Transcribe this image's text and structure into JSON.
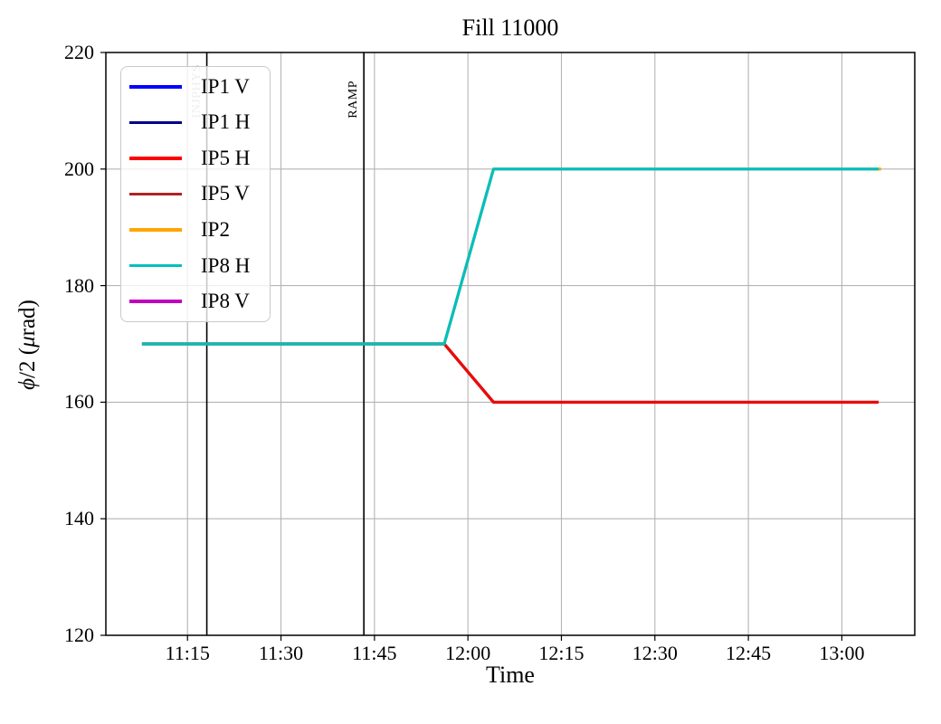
{
  "title": "Fill 11000",
  "axes": {
    "xlabel": "Time",
    "ylabel": {
      "phi": "ϕ",
      "mid": "/2 (",
      "mu": "μ",
      "end": "rad)"
    }
  },
  "chart_data": {
    "type": "line",
    "title": "Fill 11000",
    "xlabel": "Time",
    "ylabel": "phi/2 (murad)",
    "ylim": [
      120,
      220
    ],
    "y_ticks": [
      120,
      140,
      160,
      180,
      200,
      220
    ],
    "x_ticks": [
      {
        "label": "11:15",
        "minutes": 15
      },
      {
        "label": "11:30",
        "minutes": 30
      },
      {
        "label": "11:45",
        "minutes": 45
      },
      {
        "label": "12:00",
        "minutes": 60
      },
      {
        "label": "12:15",
        "minutes": 75
      },
      {
        "label": "12:30",
        "minutes": 90
      },
      {
        "label": "12:45",
        "minutes": 105
      },
      {
        "label": "13:00",
        "minutes": 120
      }
    ],
    "xlim_minutes_after_11h": [
      1.9,
      131.7
    ],
    "grid": true,
    "grid_color": "#b4b4b4",
    "legend_position": "upper-left",
    "series": [
      {
        "name": "IP1 V",
        "color": "#0000ff",
        "visible": false,
        "z": 0,
        "width": 3.2,
        "t_minutes": null,
        "values": null,
        "times": null
      },
      {
        "name": "IP1 H",
        "color": "#00008b",
        "visible": false,
        "z": 0,
        "width": 3.2,
        "t_minutes": null,
        "values": null,
        "times": null
      },
      {
        "name": "IP5 H",
        "color": "#ff0000",
        "visible": true,
        "z": 2,
        "width": 2.2,
        "t_minutes": [
          7.7,
          56.2,
          64.1,
          125.9
        ],
        "values": [
          170,
          170,
          160,
          160
        ],
        "times": [
          "11:08",
          "11:56",
          "12:04",
          "13:06"
        ]
      },
      {
        "name": "IP5 V",
        "color": "#b22222",
        "visible": true,
        "z": 1,
        "width": 3.4,
        "t_minutes": [
          7.7,
          56.2,
          64.1,
          125.9
        ],
        "values": [
          170,
          170,
          160,
          160
        ],
        "times": [
          "11:08",
          "11:56",
          "12:04",
          "13:06"
        ]
      },
      {
        "name": "IP2",
        "color": "#ffa500",
        "visible": true,
        "z": 3,
        "width": 3.2,
        "t_minutes": [
          7.7,
          56.2,
          64.1,
          126.3
        ],
        "values": [
          170,
          170,
          200,
          200
        ],
        "times": [
          "11:08",
          "11:56",
          "12:04",
          "13:06"
        ]
      },
      {
        "name": "IP8 H",
        "color": "#00bfbf",
        "visible": true,
        "z": 4,
        "width": 3.2,
        "t_minutes": [
          7.7,
          56.2,
          64.1,
          125.9
        ],
        "values": [
          170,
          170,
          200,
          200
        ],
        "times": [
          "11:08",
          "11:56",
          "12:04",
          "13:06"
        ]
      },
      {
        "name": "IP8 V",
        "color": "#bf00bf",
        "visible": false,
        "z": 0,
        "width": 3.2,
        "t_minutes": null,
        "values": null,
        "times": null
      }
    ],
    "event_lines": [
      {
        "label": "INJPHYS",
        "minutes": 18.1,
        "time": "11:18",
        "line_color": "#000000",
        "label_color": "#b3b3b3"
      },
      {
        "label": "RAMP",
        "minutes": 43.3,
        "time": "11:43",
        "line_color": "#000000",
        "label_color": "#000000"
      }
    ]
  }
}
